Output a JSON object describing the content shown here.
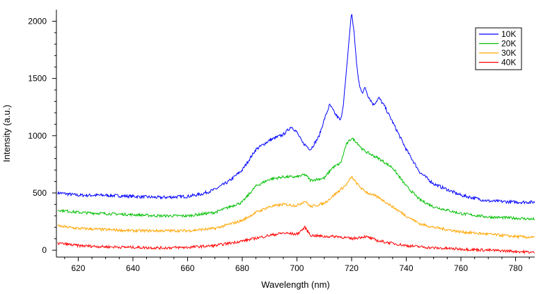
{
  "chart_data": {
    "type": "line",
    "title": "",
    "xlabel": "Wavelength (nm)",
    "ylabel": "Intensity (a.u.)",
    "xlim": [
      612,
      787
    ],
    "ylim": [
      -60,
      2100
    ],
    "x_ticks": [
      620,
      640,
      660,
      680,
      700,
      720,
      740,
      760,
      780
    ],
    "y_ticks": [
      0,
      500,
      1000,
      1500,
      2000
    ],
    "grid": false,
    "legend_position": "top-right",
    "series": [
      {
        "name": "10K",
        "color": "#0000ff",
        "x": [
          613,
          620,
          630,
          640,
          650,
          660,
          665,
          670,
          675,
          680,
          685,
          690,
          695,
          698,
          700,
          702,
          705,
          708,
          710,
          712,
          714,
          716,
          717,
          718,
          719,
          720,
          721,
          722,
          723,
          724,
          725,
          726,
          728,
          730,
          732,
          735,
          740,
          745,
          750,
          760,
          770,
          780,
          787
        ],
        "y": [
          500,
          480,
          480,
          470,
          460,
          470,
          490,
          530,
          600,
          700,
          880,
          960,
          1010,
          1080,
          1030,
          940,
          880,
          990,
          1140,
          1270,
          1190,
          1130,
          1280,
          1530,
          1820,
          2080,
          1880,
          1580,
          1420,
          1380,
          1420,
          1350,
          1270,
          1330,
          1260,
          1120,
          880,
          680,
          580,
          480,
          430,
          420,
          420
        ]
      },
      {
        "name": "20K",
        "color": "#00bf00",
        "x": [
          613,
          620,
          630,
          640,
          650,
          660,
          670,
          680,
          685,
          690,
          695,
          700,
          703,
          705,
          710,
          713,
          716,
          718,
          720,
          722,
          724,
          726,
          730,
          735,
          740,
          745,
          750,
          760,
          770,
          780,
          787
        ],
        "y": [
          350,
          330,
          320,
          310,
          300,
          300,
          330,
          420,
          560,
          620,
          640,
          640,
          660,
          610,
          630,
          720,
          760,
          920,
          980,
          940,
          880,
          850,
          800,
          720,
          560,
          440,
          380,
          320,
          290,
          280,
          270
        ]
      },
      {
        "name": "30K",
        "color": "#ffa500",
        "x": [
          613,
          620,
          630,
          640,
          650,
          660,
          670,
          680,
          685,
          690,
          695,
          700,
          703,
          705,
          710,
          715,
          718,
          720,
          722,
          724,
          726,
          730,
          735,
          740,
          745,
          750,
          760,
          770,
          780,
          787
        ],
        "y": [
          210,
          190,
          180,
          170,
          170,
          170,
          190,
          260,
          330,
          380,
          400,
          390,
          430,
          380,
          410,
          510,
          570,
          640,
          580,
          530,
          500,
          460,
          380,
          300,
          230,
          200,
          160,
          140,
          120,
          110
        ]
      },
      {
        "name": "40K",
        "color": "#ff0000",
        "x": [
          613,
          620,
          630,
          640,
          650,
          660,
          670,
          680,
          690,
          695,
          700,
          703,
          705,
          710,
          715,
          720,
          725,
          730,
          740,
          750,
          760,
          770,
          780,
          787
        ],
        "y": [
          60,
          40,
          30,
          25,
          20,
          25,
          40,
          80,
          130,
          150,
          140,
          200,
          130,
          120,
          120,
          100,
          120,
          80,
          40,
          20,
          10,
          0,
          -10,
          -20
        ]
      }
    ]
  }
}
